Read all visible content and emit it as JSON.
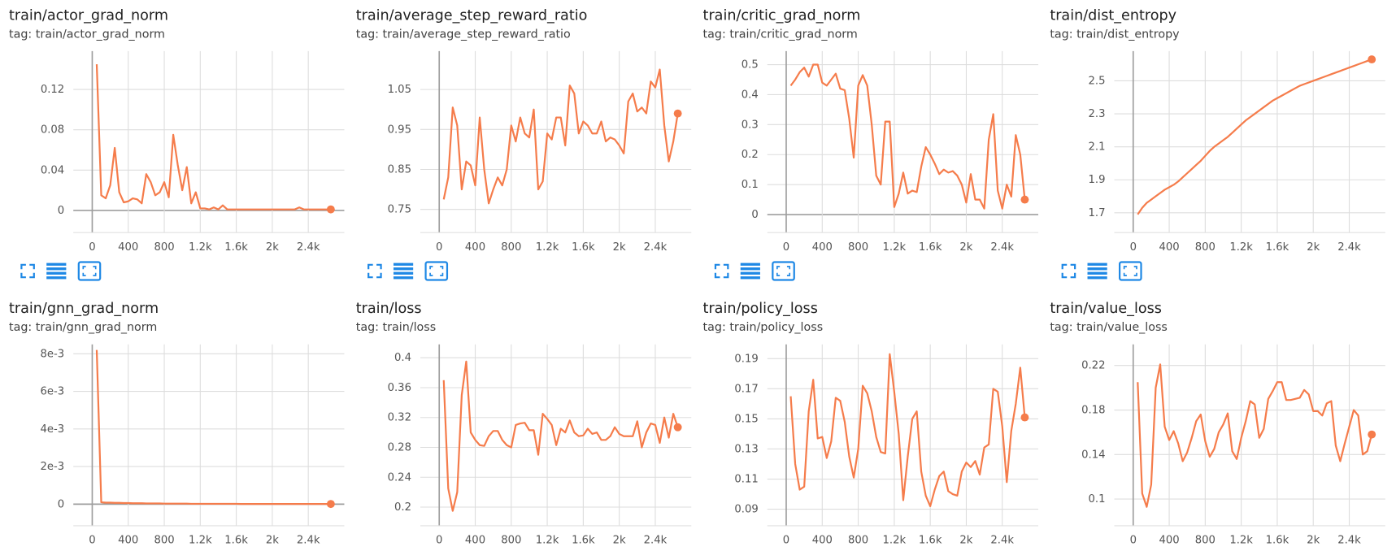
{
  "chart_data": [
    {
      "type": "line",
      "title": "train/actor_grad_norm",
      "subtitle": "tag: train/actor_grad_norm",
      "color": "#f57c4b",
      "grid": true,
      "x": [
        50,
        100,
        150,
        200,
        250,
        300,
        350,
        400,
        450,
        500,
        550,
        600,
        650,
        700,
        750,
        800,
        850,
        900,
        950,
        1000,
        1050,
        1100,
        1150,
        1200,
        1250,
        1300,
        1350,
        1400,
        1450,
        1500,
        1550,
        1600,
        1650,
        1700,
        1750,
        1800,
        1850,
        1900,
        1950,
        2000,
        2050,
        2100,
        2150,
        2200,
        2250,
        2300,
        2350,
        2400,
        2450,
        2500,
        2550,
        2600,
        2650
      ],
      "values": [
        0.145,
        0.015,
        0.012,
        0.025,
        0.062,
        0.018,
        0.008,
        0.009,
        0.012,
        0.011,
        0.007,
        0.036,
        0.028,
        0.015,
        0.018,
        0.028,
        0.013,
        0.075,
        0.045,
        0.02,
        0.043,
        0.007,
        0.018,
        0.002,
        0.002,
        0.001,
        0.003,
        0.001,
        0.005,
        0.001,
        0.001,
        0.001,
        0.001,
        0.001,
        0.001,
        0.001,
        0.001,
        0.001,
        0.001,
        0.001,
        0.001,
        0.001,
        0.001,
        0.001,
        0.001,
        0.003,
        0.001,
        0.001,
        0.001,
        0.001,
        0.001,
        0.001,
        0.001
      ],
      "xlim": [
        -210,
        2800
      ],
      "ylim": [
        -0.022,
        0.158
      ],
      "xticks": [
        0,
        400,
        800,
        {
          "value": 1200,
          "label": "1.2k"
        },
        {
          "value": 1600,
          "label": "1.6k"
        },
        {
          "value": 2000,
          "label": "2k"
        },
        {
          "value": 2400,
          "label": "2.4k"
        }
      ],
      "yticks": [
        0,
        0.04,
        0.08,
        0.12
      ]
    },
    {
      "type": "line",
      "title": "train/average_step_reward_ratio",
      "subtitle": "tag: train/average_step_reward_ratio",
      "color": "#f57c4b",
      "grid": true,
      "x": [
        50,
        100,
        150,
        200,
        250,
        300,
        350,
        400,
        450,
        500,
        550,
        600,
        650,
        700,
        750,
        800,
        850,
        900,
        950,
        1000,
        1050,
        1100,
        1150,
        1200,
        1250,
        1300,
        1350,
        1400,
        1450,
        1500,
        1550,
        1600,
        1650,
        1700,
        1750,
        1800,
        1850,
        1900,
        1950,
        2000,
        2050,
        2100,
        2150,
        2200,
        2250,
        2300,
        2350,
        2400,
        2450,
        2500,
        2550,
        2600,
        2650
      ],
      "values": [
        0.775,
        0.83,
        1.005,
        0.96,
        0.8,
        0.87,
        0.86,
        0.81,
        0.98,
        0.85,
        0.765,
        0.8,
        0.83,
        0.81,
        0.85,
        0.96,
        0.92,
        0.98,
        0.94,
        0.93,
        1.0,
        0.8,
        0.82,
        0.94,
        0.925,
        0.98,
        0.98,
        0.91,
        1.06,
        1.04,
        0.94,
        0.97,
        0.96,
        0.94,
        0.94,
        0.97,
        0.92,
        0.93,
        0.925,
        0.91,
        0.89,
        1.02,
        1.04,
        0.995,
        1.005,
        0.99,
        1.07,
        1.055,
        1.1,
        0.96,
        0.87,
        0.92,
        0.99
      ],
      "xlim": [
        -210,
        2800
      ],
      "ylim": [
        0.692,
        1.146
      ],
      "xticks": [
        0,
        400,
        800,
        {
          "value": 1200,
          "label": "1.2k"
        },
        {
          "value": 1600,
          "label": "1.6k"
        },
        {
          "value": 2000,
          "label": "2k"
        },
        {
          "value": 2400,
          "label": "2.4k"
        }
      ],
      "yticks": [
        0.75,
        0.85,
        0.95,
        1.05
      ]
    },
    {
      "type": "line",
      "title": "train/critic_grad_norm",
      "subtitle": "tag: train/critic_grad_norm",
      "color": "#f57c4b",
      "grid": true,
      "x": [
        50,
        100,
        150,
        200,
        250,
        300,
        350,
        400,
        450,
        500,
        550,
        600,
        650,
        700,
        750,
        800,
        850,
        900,
        950,
        1000,
        1050,
        1100,
        1150,
        1200,
        1250,
        1300,
        1350,
        1400,
        1450,
        1500,
        1550,
        1600,
        1650,
        1700,
        1750,
        1800,
        1850,
        1900,
        1950,
        2000,
        2050,
        2100,
        2150,
        2200,
        2250,
        2300,
        2350,
        2400,
        2450,
        2500,
        2550,
        2600,
        2650
      ],
      "values": [
        0.43,
        0.45,
        0.475,
        0.49,
        0.46,
        0.5,
        0.5,
        0.44,
        0.43,
        0.45,
        0.47,
        0.42,
        0.415,
        0.32,
        0.19,
        0.43,
        0.465,
        0.43,
        0.3,
        0.13,
        0.1,
        0.31,
        0.31,
        0.025,
        0.07,
        0.14,
        0.07,
        0.08,
        0.075,
        0.16,
        0.225,
        0.2,
        0.17,
        0.135,
        0.15,
        0.14,
        0.145,
        0.13,
        0.1,
        0.04,
        0.135,
        0.05,
        0.05,
        0.02,
        0.25,
        0.335,
        0.08,
        0.02,
        0.1,
        0.06,
        0.265,
        0.2,
        0.05
      ],
      "xlim": [
        -210,
        2800
      ],
      "ylim": [
        -0.06,
        0.545
      ],
      "xticks": [
        0,
        400,
        800,
        {
          "value": 1200,
          "label": "1.2k"
        },
        {
          "value": 1600,
          "label": "1.6k"
        },
        {
          "value": 2000,
          "label": "2k"
        },
        {
          "value": 2400,
          "label": "2.4k"
        }
      ],
      "yticks": [
        0,
        0.1,
        0.2,
        0.3,
        0.4,
        0.5
      ]
    },
    {
      "type": "line",
      "title": "train/dist_entropy",
      "subtitle": "tag: train/dist_entropy",
      "color": "#f57c4b",
      "grid": true,
      "x": [
        50,
        100,
        150,
        200,
        250,
        300,
        350,
        400,
        450,
        500,
        550,
        600,
        650,
        700,
        750,
        800,
        850,
        900,
        950,
        1000,
        1050,
        1100,
        1150,
        1200,
        1250,
        1300,
        1350,
        1400,
        1450,
        1500,
        1550,
        1600,
        1650,
        1700,
        1750,
        1800,
        1850,
        1900,
        1950,
        2000,
        2050,
        2100,
        2150,
        2200,
        2250,
        2300,
        2350,
        2400,
        2450,
        2500,
        2550,
        2600,
        2650
      ],
      "values": [
        1.69,
        1.73,
        1.76,
        1.78,
        1.8,
        1.82,
        1.84,
        1.855,
        1.87,
        1.89,
        1.915,
        1.94,
        1.965,
        1.99,
        2.015,
        2.045,
        2.075,
        2.1,
        2.12,
        2.14,
        2.16,
        2.185,
        2.21,
        2.235,
        2.26,
        2.28,
        2.3,
        2.32,
        2.34,
        2.36,
        2.38,
        2.395,
        2.41,
        2.425,
        2.44,
        2.455,
        2.47,
        2.48,
        2.49,
        2.5,
        2.51,
        2.52,
        2.53,
        2.54,
        2.55,
        2.56,
        2.57,
        2.58,
        2.59,
        2.6,
        2.61,
        2.62,
        2.63
      ],
      "xlim": [
        -210,
        2800
      ],
      "ylim": [
        1.58,
        2.68
      ],
      "xticks": [
        0,
        400,
        800,
        {
          "value": 1200,
          "label": "1.2k"
        },
        {
          "value": 1600,
          "label": "1.6k"
        },
        {
          "value": 2000,
          "label": "2k"
        },
        {
          "value": 2400,
          "label": "2.4k"
        }
      ],
      "yticks": [
        1.7,
        1.9,
        2.1,
        2.3,
        2.5
      ]
    },
    {
      "type": "line",
      "title": "train/gnn_grad_norm",
      "subtitle": "tag: train/gnn_grad_norm",
      "color": "#f57c4b",
      "grid": true,
      "x": [
        50,
        100,
        150,
        200,
        250,
        300,
        350,
        400,
        450,
        500,
        550,
        600,
        650,
        700,
        750,
        800,
        850,
        900,
        950,
        1000,
        1050,
        1100,
        1150,
        1200,
        1250,
        1300,
        1350,
        1400,
        1450,
        1500,
        1550,
        1600,
        1650,
        1700,
        1750,
        1800,
        1850,
        1900,
        1950,
        2000,
        2050,
        2100,
        2150,
        2200,
        2250,
        2300,
        2350,
        2400,
        2450,
        2500,
        2550,
        2600,
        2650
      ],
      "values": [
        0.0082,
        0.0001,
        8e-05,
        8e-05,
        7e-05,
        7e-05,
        6e-05,
        6e-05,
        5e-05,
        5e-05,
        5e-05,
        4e-05,
        4e-05,
        4e-05,
        4e-05,
        3e-05,
        3e-05,
        3e-05,
        3e-05,
        3e-05,
        3e-05,
        2e-05,
        2e-05,
        2e-05,
        2e-05,
        2e-05,
        2e-05,
        2e-05,
        2e-05,
        2e-05,
        2e-05,
        2e-05,
        1e-05,
        1e-05,
        1e-05,
        1e-05,
        1e-05,
        1e-05,
        1e-05,
        1e-05,
        1e-05,
        1e-05,
        1e-05,
        1e-05,
        1e-05,
        1e-05,
        1e-05,
        1e-05,
        1e-05,
        1e-05,
        1e-05,
        1e-05,
        1e-05
      ],
      "xlim": [
        -210,
        2800
      ],
      "ylim": [
        -0.00115,
        0.0085
      ],
      "xticks": [
        0,
        400,
        800,
        {
          "value": 1200,
          "label": "1.2k"
        },
        {
          "value": 1600,
          "label": "1.6k"
        },
        {
          "value": 2000,
          "label": "2k"
        },
        {
          "value": 2400,
          "label": "2.4k"
        }
      ],
      "yticks": [
        0,
        {
          "value": 0.002,
          "label": "2e-3"
        },
        {
          "value": 0.004,
          "label": "4e-3"
        },
        {
          "value": 0.006,
          "label": "6e-3"
        },
        {
          "value": 0.008,
          "label": "8e-3"
        }
      ]
    },
    {
      "type": "line",
      "title": "train/loss",
      "subtitle": "tag: train/loss",
      "color": "#f57c4b",
      "grid": true,
      "x": [
        50,
        100,
        150,
        200,
        250,
        300,
        350,
        400,
        450,
        500,
        550,
        600,
        650,
        700,
        750,
        800,
        850,
        900,
        950,
        1000,
        1050,
        1100,
        1150,
        1200,
        1250,
        1300,
        1350,
        1400,
        1450,
        1500,
        1550,
        1600,
        1650,
        1700,
        1750,
        1800,
        1850,
        1900,
        1950,
        2000,
        2050,
        2100,
        2150,
        2200,
        2250,
        2300,
        2350,
        2400,
        2450,
        2500,
        2550,
        2600,
        2650
      ],
      "values": [
        0.37,
        0.225,
        0.195,
        0.22,
        0.35,
        0.395,
        0.3,
        0.29,
        0.283,
        0.282,
        0.295,
        0.302,
        0.302,
        0.29,
        0.283,
        0.28,
        0.31,
        0.312,
        0.313,
        0.303,
        0.303,
        0.27,
        0.325,
        0.318,
        0.31,
        0.283,
        0.305,
        0.3,
        0.316,
        0.3,
        0.295,
        0.296,
        0.305,
        0.298,
        0.3,
        0.29,
        0.29,
        0.295,
        0.307,
        0.298,
        0.295,
        0.295,
        0.295,
        0.315,
        0.28,
        0.3,
        0.312,
        0.31,
        0.286,
        0.32,
        0.293,
        0.325,
        0.307
      ],
      "xlim": [
        -210,
        2800
      ],
      "ylim": [
        0.175,
        0.418
      ],
      "xticks": [
        0,
        400,
        800,
        {
          "value": 1200,
          "label": "1.2k"
        },
        {
          "value": 1600,
          "label": "1.6k"
        },
        {
          "value": 2000,
          "label": "2k"
        },
        {
          "value": 2400,
          "label": "2.4k"
        }
      ],
      "yticks": [
        0.2,
        0.24,
        0.28,
        0.32,
        0.36,
        0.4
      ]
    },
    {
      "type": "line",
      "title": "train/policy_loss",
      "subtitle": "tag: train/policy_loss",
      "color": "#f57c4b",
      "grid": true,
      "x": [
        50,
        100,
        150,
        200,
        250,
        300,
        350,
        400,
        450,
        500,
        550,
        600,
        650,
        700,
        750,
        800,
        850,
        900,
        950,
        1000,
        1050,
        1100,
        1150,
        1200,
        1250,
        1300,
        1350,
        1400,
        1450,
        1500,
        1550,
        1600,
        1650,
        1700,
        1750,
        1800,
        1850,
        1900,
        1950,
        2000,
        2050,
        2100,
        2150,
        2200,
        2250,
        2300,
        2350,
        2400,
        2450,
        2500,
        2550,
        2600,
        2650
      ],
      "values": [
        0.165,
        0.12,
        0.103,
        0.105,
        0.155,
        0.176,
        0.137,
        0.138,
        0.124,
        0.135,
        0.164,
        0.162,
        0.148,
        0.125,
        0.111,
        0.13,
        0.172,
        0.167,
        0.155,
        0.138,
        0.128,
        0.127,
        0.193,
        0.168,
        0.14,
        0.096,
        0.125,
        0.15,
        0.155,
        0.115,
        0.099,
        0.092,
        0.103,
        0.112,
        0.115,
        0.102,
        0.1,
        0.099,
        0.115,
        0.121,
        0.118,
        0.122,
        0.113,
        0.131,
        0.133,
        0.17,
        0.168,
        0.145,
        0.108,
        0.142,
        0.16,
        0.184,
        0.151
      ],
      "xlim": [
        -210,
        2800
      ],
      "ylim": [
        0.079,
        0.1995
      ],
      "xticks": [
        0,
        400,
        800,
        {
          "value": 1200,
          "label": "1.2k"
        },
        {
          "value": 1600,
          "label": "1.6k"
        },
        {
          "value": 2000,
          "label": "2k"
        },
        {
          "value": 2400,
          "label": "2.4k"
        }
      ],
      "yticks": [
        0.09,
        0.11,
        0.13,
        0.15,
        0.17,
        0.19
      ]
    },
    {
      "type": "line",
      "title": "train/value_loss",
      "subtitle": "tag: train/value_loss",
      "color": "#f57c4b",
      "grid": true,
      "x": [
        50,
        100,
        150,
        200,
        250,
        300,
        350,
        400,
        450,
        500,
        550,
        600,
        650,
        700,
        750,
        800,
        850,
        900,
        950,
        1000,
        1050,
        1100,
        1150,
        1200,
        1250,
        1300,
        1350,
        1400,
        1450,
        1500,
        1550,
        1600,
        1650,
        1700,
        1750,
        1800,
        1850,
        1900,
        1950,
        2000,
        2050,
        2100,
        2150,
        2200,
        2250,
        2300,
        2350,
        2400,
        2450,
        2500,
        2550,
        2600,
        2650
      ],
      "values": [
        0.205,
        0.105,
        0.093,
        0.113,
        0.2,
        0.221,
        0.165,
        0.153,
        0.161,
        0.15,
        0.134,
        0.142,
        0.155,
        0.17,
        0.176,
        0.152,
        0.138,
        0.145,
        0.16,
        0.167,
        0.177,
        0.143,
        0.136,
        0.155,
        0.17,
        0.188,
        0.185,
        0.155,
        0.163,
        0.19,
        0.197,
        0.205,
        0.205,
        0.189,
        0.189,
        0.19,
        0.191,
        0.198,
        0.194,
        0.179,
        0.179,
        0.175,
        0.186,
        0.188,
        0.148,
        0.134,
        0.15,
        0.165,
        0.18,
        0.175,
        0.14,
        0.143,
        0.158
      ],
      "xlim": [
        -210,
        2800
      ],
      "ylim": [
        0.076,
        0.239
      ],
      "xticks": [
        0,
        400,
        800,
        {
          "value": 1200,
          "label": "1.2k"
        },
        {
          "value": 1600,
          "label": "1.6k"
        },
        {
          "value": 2000,
          "label": "2k"
        },
        {
          "value": 2400,
          "label": "2.4k"
        }
      ],
      "yticks": [
        0.1,
        0.14,
        0.18,
        0.22
      ]
    }
  ]
}
